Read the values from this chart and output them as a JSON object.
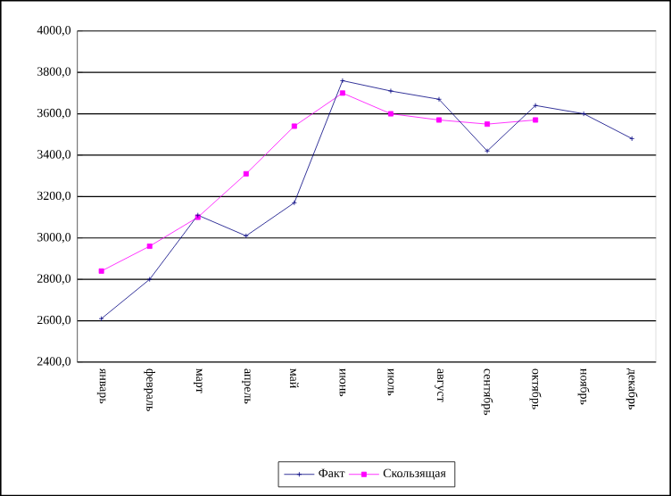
{
  "chart_data": {
    "type": "line",
    "categories": [
      "январь",
      "февраль",
      "март",
      "апрель",
      "май",
      "июнь",
      "июль",
      "август",
      "сентябрь",
      "октябрь",
      "ноябрь",
      "декабрь"
    ],
    "series": [
      {
        "name": "Факт",
        "color": "#000080",
        "marker": "cross",
        "values": [
          2610,
          2800,
          3110,
          3010,
          3170,
          3760,
          3710,
          3670,
          3420,
          3640,
          3600,
          3480
        ]
      },
      {
        "name": "Скользящая",
        "color": "#ff00ff",
        "marker": "square",
        "values": [
          2840,
          2960,
          3100,
          3310,
          3540,
          3700,
          3600,
          3570,
          3550,
          3570,
          null,
          null
        ]
      }
    ],
    "ylim": [
      2400,
      4000
    ],
    "yticks": [
      {
        "value": 2400,
        "label": "2400,0"
      },
      {
        "value": 2600,
        "label": "2600,0"
      },
      {
        "value": 2800,
        "label": "2800,0"
      },
      {
        "value": 3000,
        "label": "3000,0"
      },
      {
        "value": 3200,
        "label": "3200,0"
      },
      {
        "value": 3400,
        "label": "3400,0"
      },
      {
        "value": 3600,
        "label": "3600,0"
      },
      {
        "value": 3800,
        "label": "3800,0"
      },
      {
        "value": 4000,
        "label": "4000,0"
      }
    ],
    "grid": "y",
    "legend": "bottom"
  }
}
